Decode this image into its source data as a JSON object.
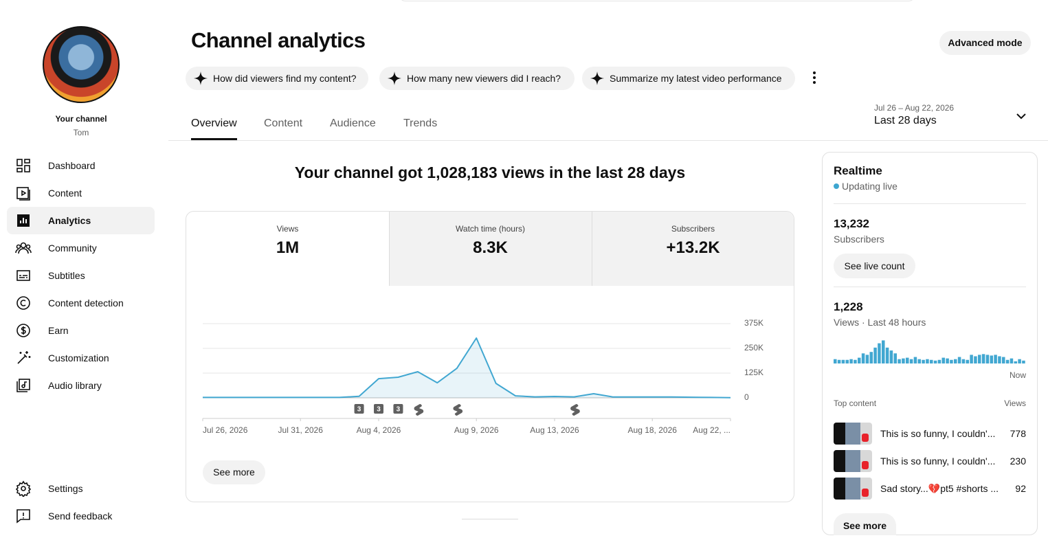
{
  "sidebar": {
    "channel_label": "Your channel",
    "channel_name": "Tom",
    "nav": [
      {
        "label": "Dashboard"
      },
      {
        "label": "Content"
      },
      {
        "label": "Analytics",
        "selected": true
      },
      {
        "label": "Community"
      },
      {
        "label": "Subtitles"
      },
      {
        "label": "Content detection"
      },
      {
        "label": "Earn"
      },
      {
        "label": "Customization"
      },
      {
        "label": "Audio library"
      }
    ],
    "footer_nav": [
      "Settings",
      "Send feedback"
    ]
  },
  "header": {
    "title": "Channel analytics",
    "advanced_button": "Advanced mode",
    "suggestions": [
      "How did viewers find my content?",
      "How many new viewers did I reach?",
      "Summarize my latest video performance"
    ],
    "tabs": [
      {
        "label": "Overview",
        "selected": true
      },
      {
        "label": "Content"
      },
      {
        "label": "Audience"
      },
      {
        "label": "Trends"
      }
    ],
    "date_range": "Jul 26 – Aug 22, 2026",
    "period": "Last 28 days"
  },
  "headline": "Your channel got 1,028,183 views in the last 28 days",
  "metrics": [
    {
      "label": "Views",
      "value": "1M",
      "selected": true
    },
    {
      "label": "Watch time (hours)",
      "value": "8.3K"
    },
    {
      "label": "Subscribers",
      "value": "+13.2K"
    }
  ],
  "see_more": "See more",
  "chart_data": [
    {
      "type": "line",
      "color": "#41a7d1",
      "x": [
        "Jul 26, 2026",
        "Jul 27, 2026",
        "Jul 28, 2026",
        "Jul 29, 2026",
        "Jul 30, 2026",
        "Jul 31, 2026",
        "Aug 1, 2026",
        "Aug 2, 2026",
        "Aug 3, 2026",
        "Aug 4, 2026",
        "Aug 5, 2026",
        "Aug 6, 2026",
        "Aug 7, 2026",
        "Aug 8, 2026",
        "Aug 9, 2026",
        "Aug 10, 2026",
        "Aug 11, 2026",
        "Aug 12, 2026",
        "Aug 13, 2026",
        "Aug 14, 2026",
        "Aug 15, 2026",
        "Aug 16, 2026",
        "Aug 17, 2026",
        "Aug 18, 2026",
        "Aug 19, 2026",
        "Aug 20, 2026",
        "Aug 21, 2026",
        "Aug 22, 2026"
      ],
      "values": [
        2000,
        2000,
        2000,
        2000,
        2000,
        2000,
        2000,
        2000,
        8000,
        97000,
        104000,
        132000,
        76000,
        149000,
        302000,
        73000,
        10000,
        5000,
        7000,
        5000,
        21000,
        4000,
        4000,
        4000,
        4000,
        3000,
        2000,
        1000
      ],
      "ylim": [
        0,
        375000
      ],
      "yticks": [
        0,
        {
          "value": 125000,
          "label": "125K"
        },
        {
          "value": 250000,
          "label": "250K"
        },
        {
          "value": 375000,
          "label": "375K"
        }
      ],
      "xticks": [
        "Jul 26, 2026",
        "Jul 31, 2026",
        "Aug 4, 2026",
        "Aug 9, 2026",
        "Aug 13, 2026",
        "Aug 18, 2026",
        {
          "value": "Aug 22, 2026",
          "label": "Aug 22, ..."
        }
      ],
      "grid": true,
      "markers": [
        {
          "x": "Aug 3, 2026",
          "label": "3"
        },
        {
          "x": "Aug 4, 2026",
          "label": "3"
        },
        {
          "x": "Aug 5, 2026",
          "label": "3"
        }
      ],
      "short_markers": [
        "Aug 6, 2026",
        "Aug 8, 2026",
        "Aug 14, 2026"
      ]
    },
    {
      "type": "bar",
      "color": "#41a7d1",
      "ylim": [
        0,
        100
      ],
      "x_end_label": "Now",
      "values": [
        18,
        15,
        15,
        15,
        18,
        15,
        24,
        42,
        36,
        48,
        66,
        84,
        96,
        66,
        54,
        42,
        18,
        21,
        24,
        18,
        27,
        18,
        15,
        18,
        15,
        12,
        15,
        24,
        21,
        15,
        18,
        27,
        18,
        15,
        36,
        30,
        36,
        39,
        36,
        33,
        36,
        30,
        27,
        15,
        21,
        9,
        18,
        12
      ]
    }
  ],
  "realtime": {
    "title": "Realtime",
    "status": "Updating live",
    "subscribers": {
      "value": "13,232",
      "label": "Subscribers"
    },
    "live_count_button": "See live count",
    "views": {
      "value": "1,228",
      "label": "Views · Last 48 hours"
    },
    "top_content": {
      "title": "Top content",
      "views_header": "Views",
      "rows": [
        {
          "title": "This is so funny, I couldn'...",
          "views": 778
        },
        {
          "title": "This is so funny, I couldn'...",
          "views": 230
        },
        {
          "title": "Sad story...💔pt5 #shorts ...",
          "views": 92
        }
      ]
    },
    "see_more": "See more"
  }
}
